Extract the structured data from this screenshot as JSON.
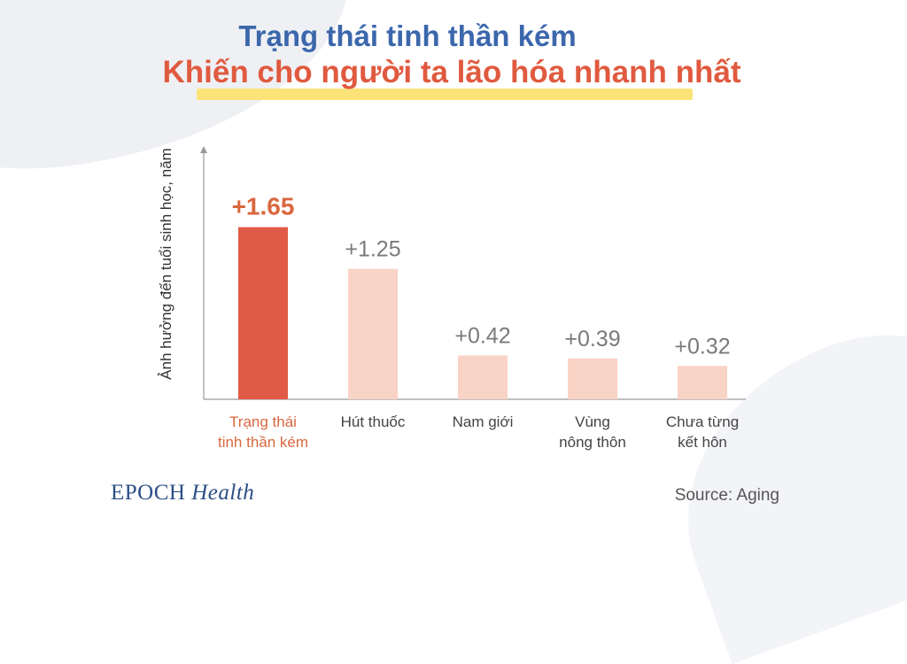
{
  "header": {
    "title": "Trạng thái tinh thần kém",
    "subtitle": "Khiến cho người ta lão hóa nhanh nhất"
  },
  "chart_data": {
    "type": "bar",
    "ylabel": "Ảnh hưởng đến tuổi sinh học, năm",
    "categories": [
      "Trạng thái\ntinh thần kém",
      "Hút thuốc",
      "Nam giới",
      "Vùng\nnông thôn",
      "Chưa từng\nkết hôn"
    ],
    "values": [
      1.65,
      1.25,
      0.42,
      0.39,
      0.32
    ],
    "value_labels": [
      "+1.65",
      "+1.25",
      "+0.42",
      "+0.39",
      "+0.32"
    ],
    "highlight_index": 0,
    "ylim": [
      0,
      2.3
    ],
    "grid": false,
    "colors": {
      "highlight": "#e05a45",
      "bar": "#f9d3c5",
      "highlight_label": "#d9673f",
      "label": "#7a7a7a",
      "axis": "#9a9a9a"
    }
  },
  "footer": {
    "brand_part1": "EPOCH",
    "brand_part2": "Health",
    "source": "Source: Aging"
  }
}
